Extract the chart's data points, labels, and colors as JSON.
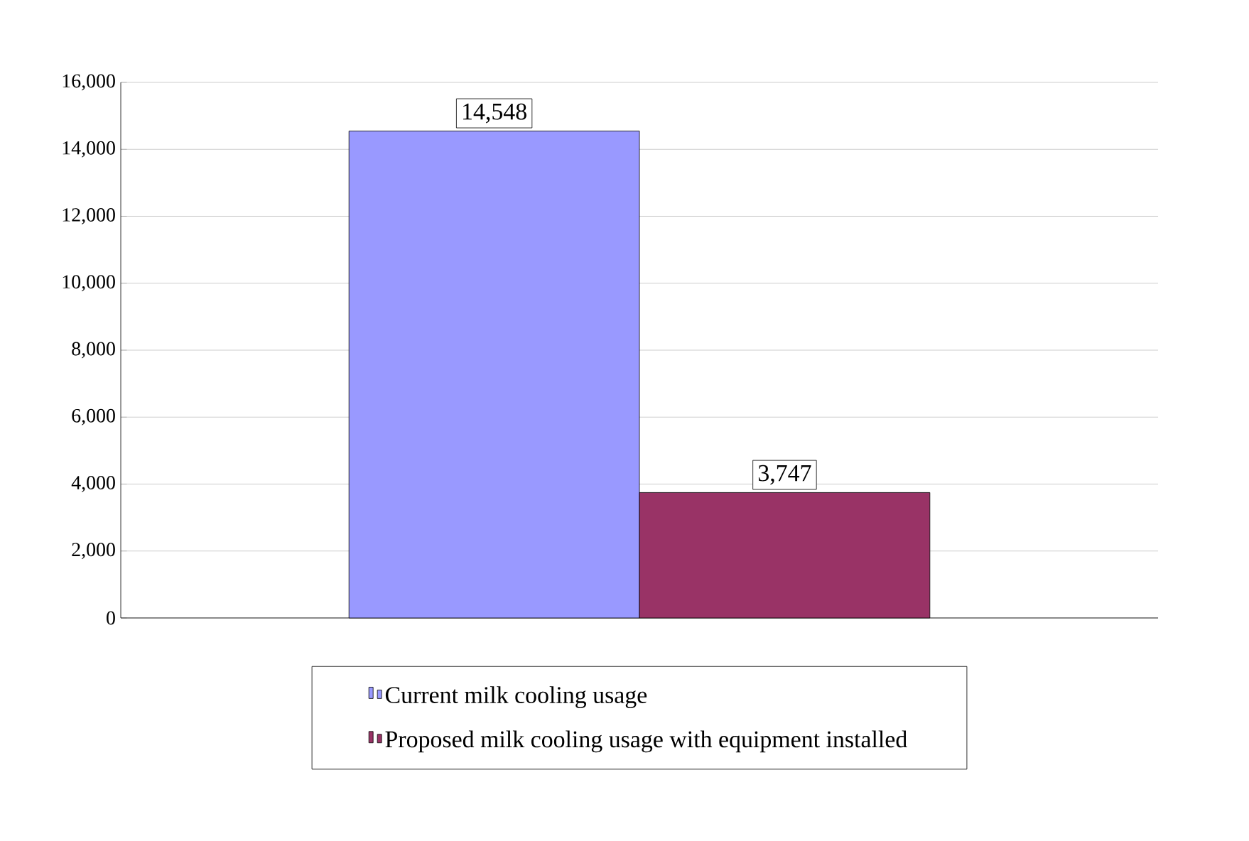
{
  "chart_data": {
    "type": "bar",
    "categories": [
      null
    ],
    "series": [
      {
        "name": "Current milk cooling usage",
        "color": "#9999ff",
        "values": [
          14548
        ],
        "value_labels": [
          "14,548"
        ]
      },
      {
        "name": "Proposed milk cooling usage with equipment installed",
        "color": "#993366",
        "values": [
          3747
        ],
        "value_labels": [
          "3,747"
        ]
      }
    ],
    "ylim": [
      0,
      16000
    ],
    "yticks": [
      0,
      {
        "value": 2000,
        "label": "2,000"
      },
      {
        "value": 4000,
        "label": "4,000"
      },
      {
        "value": 6000,
        "label": "6,000"
      },
      {
        "value": 8000,
        "label": "8,000"
      },
      {
        "value": 10000,
        "label": "10,000"
      },
      {
        "value": 12000,
        "label": "12,000"
      },
      {
        "value": 14000,
        "label": "14,000"
      },
      {
        "value": 16000,
        "label": "16,000"
      }
    ],
    "grid": "y",
    "legend": "bottom"
  }
}
